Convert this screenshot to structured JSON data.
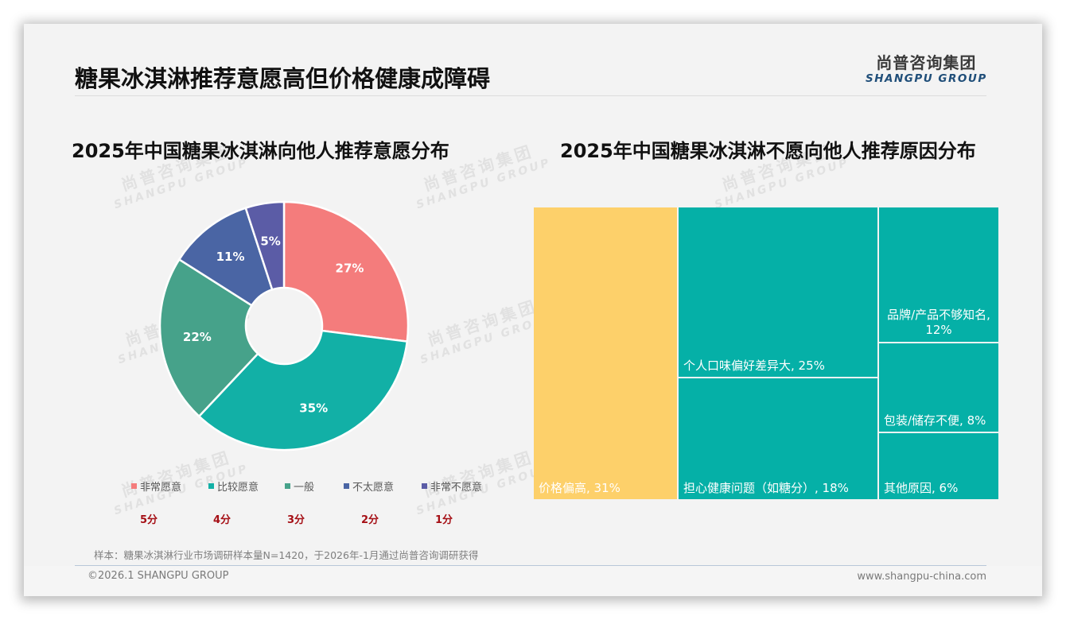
{
  "header": {
    "title": "糖果冰淇淋推荐意愿高但价格健康成障碍",
    "logo_cn": "尚普咨询集团",
    "logo_en": "SHANGPU GROUP"
  },
  "watermark": {
    "cn": "尚普咨询集团",
    "en": "SHANGPU GROUP"
  },
  "left_chart": {
    "title": "2025年中国糖果冰淇淋向他人推荐意愿分布",
    "legend": [
      {
        "label": "非常愿意",
        "score": "5分",
        "color": "#f47c7c"
      },
      {
        "label": "比较愿意",
        "score": "4分",
        "color": "#12b0a6"
      },
      {
        "label": "一般",
        "score": "3分",
        "color": "#46a28a"
      },
      {
        "label": "不太愿意",
        "score": "2分",
        "color": "#4a65a4"
      },
      {
        "label": "非常不愿意",
        "score": "1分",
        "color": "#5b5ca6"
      }
    ]
  },
  "right_chart": {
    "title": "2025年中国糖果冰淇淋不愿向他人推荐原因分布"
  },
  "chart_data": [
    {
      "type": "pie",
      "subtype": "donut",
      "title": "2025年中国糖果冰淇淋向他人推荐意愿分布",
      "categories": [
        "非常愿意",
        "比较愿意",
        "一般",
        "不太愿意",
        "非常不愿意"
      ],
      "values": [
        27,
        35,
        22,
        11,
        5
      ],
      "data_labels": [
        "27%",
        "35%",
        "22%",
        "11%",
        "5%"
      ],
      "scores": [
        "5分",
        "4分",
        "3分",
        "2分",
        "1分"
      ],
      "colors": [
        "#f47c7c",
        "#12b0a6",
        "#46a28a",
        "#4a65a4",
        "#5b5ca6"
      ],
      "legend_position": "bottom",
      "start_angle": "12 o'clock, clockwise"
    },
    {
      "type": "treemap",
      "title": "2025年中国糖果冰淇淋不愿向他人推荐原因分布",
      "categories": [
        "价格偏高",
        "个人口味偏好差异大",
        "担心健康问题（如糖分）",
        "品牌/产品不够知名",
        "包装/储存不便",
        "其他原因"
      ],
      "values": [
        31,
        25,
        18,
        12,
        8,
        6
      ],
      "data_labels": [
        "价格偏高, 31%",
        "个人口味偏好差异大, 25%",
        "担心健康问题（如糖分）, 18%",
        "品牌/产品不够知名, 12%",
        "包装/储存不便, 8%",
        "其他原因, 6%"
      ],
      "colors": [
        "#fdd06a",
        "#05b0a7",
        "#05b0a7",
        "#05b0a7",
        "#05b0a7",
        "#05b0a7"
      ]
    }
  ],
  "footer": {
    "note": "样本：糖果冰淇淋行业市场调研样本量N=1420，于2026年-1月通过尚普咨询调研获得",
    "copyright": "©2026.1 SHANGPU GROUP",
    "url": "www.shangpu-china.com"
  }
}
